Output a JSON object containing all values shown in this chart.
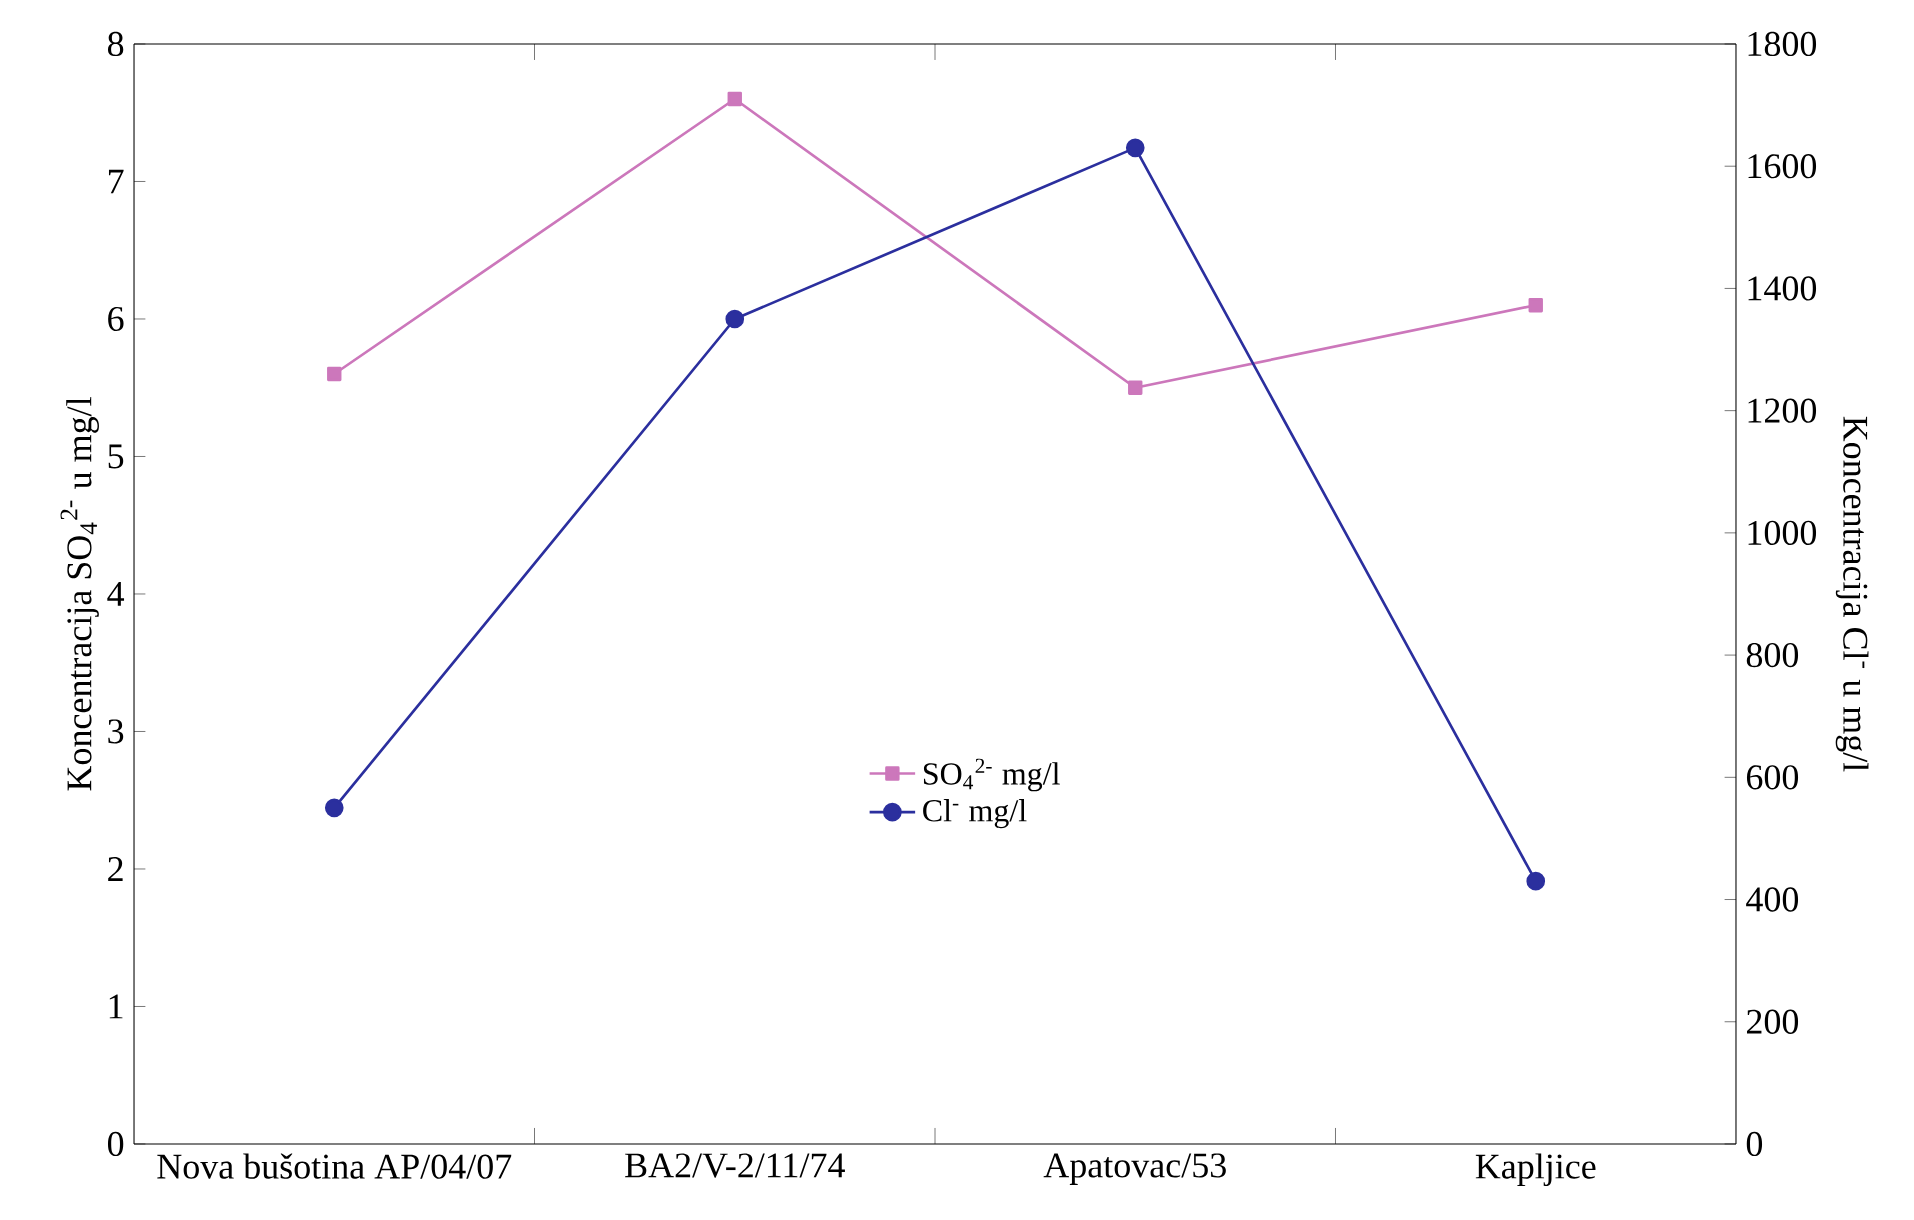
{
  "chart_data": {
    "type": "line",
    "categories": [
      "Nova bušotina AP/04/07",
      "BA2/V-2/11/74",
      "Apatovac/53",
      "Kapljice"
    ],
    "ylabel": "Koncentracija SO$_{4}$$^{2-}$ u mg/l",
    "y2label": "Koncentracija Cl$^{-}$ u mg/l",
    "series": [
      {
        "name": "SO$_{4}$$^{2-}$ mg/l",
        "color": "#cc77bb",
        "marker": "square",
        "values": [
          5.6,
          7.6,
          5.5,
          6.1
        ]
      },
      {
        "name": "Cl$^{-}$ mg/l",
        "color": "#2b2f9e",
        "marker": "circle",
        "axis": "y2",
        "values": [
          550,
          1350,
          1630,
          430
        ]
      }
    ],
    "ylim": [
      0,
      8
    ],
    "yticks": [
      0,
      1,
      2,
      3,
      4,
      5,
      6,
      7,
      8
    ],
    "y2lim": [
      0,
      1800
    ],
    "y2ticks": [
      0,
      200,
      400,
      600,
      800,
      1000,
      1200,
      1400,
      1600,
      1800
    ],
    "grid": false,
    "legend": "center"
  }
}
